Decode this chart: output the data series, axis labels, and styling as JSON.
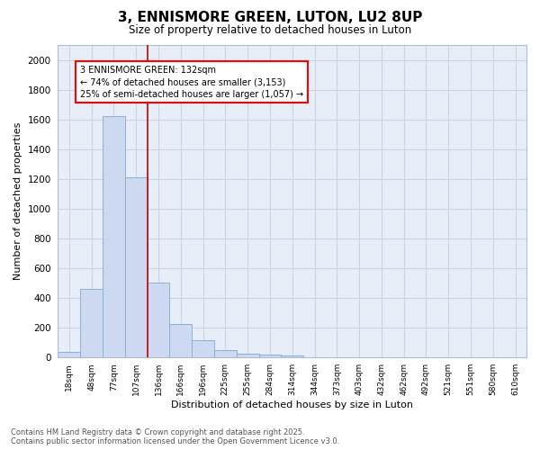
{
  "title": "3, ENNISMORE GREEN, LUTON, LU2 8UP",
  "subtitle": "Size of property relative to detached houses in Luton",
  "xlabel": "Distribution of detached houses by size in Luton",
  "ylabel": "Number of detached properties",
  "categories": [
    "18sqm",
    "48sqm",
    "77sqm",
    "107sqm",
    "136sqm",
    "166sqm",
    "196sqm",
    "225sqm",
    "255sqm",
    "284sqm",
    "314sqm",
    "344sqm",
    "373sqm",
    "403sqm",
    "432sqm",
    "462sqm",
    "492sqm",
    "521sqm",
    "551sqm",
    "580sqm",
    "610sqm"
  ],
  "values": [
    35,
    460,
    1620,
    1210,
    500,
    220,
    115,
    45,
    25,
    20,
    10,
    0,
    0,
    0,
    0,
    0,
    0,
    0,
    0,
    0,
    0
  ],
  "bar_color": "#ccd9f0",
  "bar_edge_color": "#8ab0d8",
  "vline_color": "#cc0000",
  "annotation_text": "3 ENNISMORE GREEN: 132sqm\n← 74% of detached houses are smaller (3,153)\n25% of semi-detached houses are larger (1,057) →",
  "ylim": [
    0,
    2100
  ],
  "yticks": [
    0,
    200,
    400,
    600,
    800,
    1000,
    1200,
    1400,
    1600,
    1800,
    2000
  ],
  "grid_color": "#c8d4e8",
  "bg_color": "#e8eef8",
  "footer1": "Contains HM Land Registry data © Crown copyright and database right 2025.",
  "footer2": "Contains public sector information licensed under the Open Government Licence v3.0."
}
